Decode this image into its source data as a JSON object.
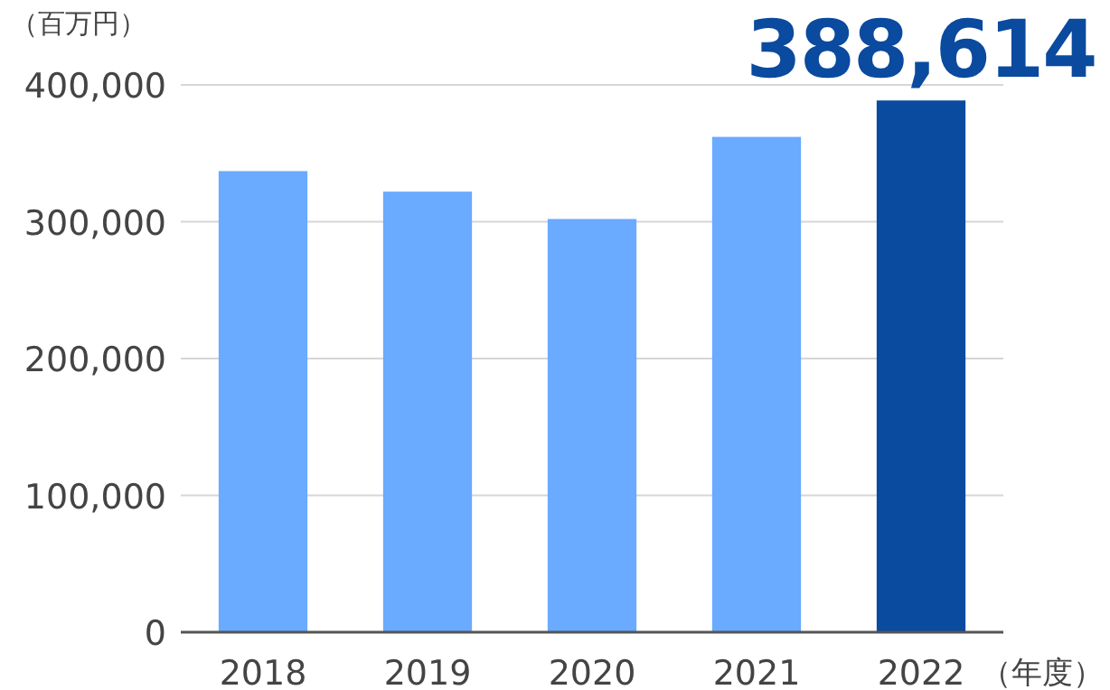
{
  "chart_data": {
    "type": "bar",
    "ylabel": "（百万円）",
    "xlabel": "（年度）",
    "categories": [
      "2018",
      "2019",
      "2020",
      "2021",
      "2022"
    ],
    "values": [
      337000,
      322000,
      302000,
      362000,
      388614
    ],
    "colors": [
      "#6aaaff",
      "#6aaaff",
      "#6aaaff",
      "#6aaaff",
      "#0a4a9f"
    ],
    "value_labels": [
      null,
      null,
      null,
      null,
      "388,614"
    ],
    "ylim": [
      0,
      400000
    ],
    "yticks": [
      {
        "value": 0,
        "label": "0"
      },
      {
        "value": 100000,
        "label": "100,000"
      },
      {
        "value": 200000,
        "label": "200,000"
      },
      {
        "value": 300000,
        "label": "300,000"
      },
      {
        "value": 400000,
        "label": "400,000"
      }
    ],
    "grid": "y"
  }
}
